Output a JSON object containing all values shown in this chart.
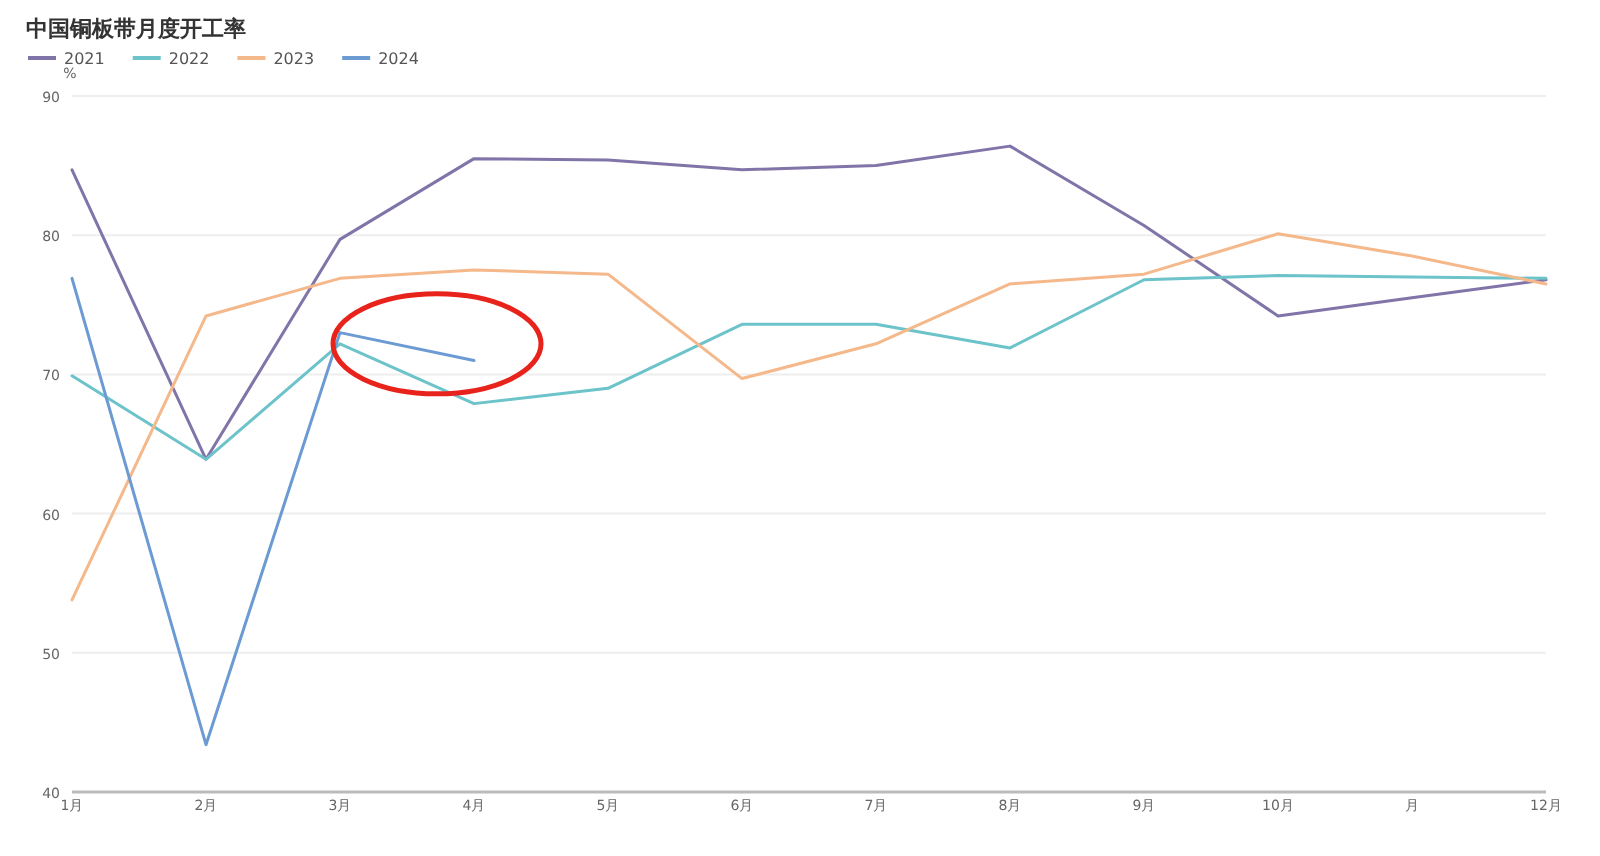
{
  "chart_data": {
    "type": "line",
    "title": "中国铜板带月度开工率",
    "ylabel": "%",
    "categories": [
      "1月",
      "2月",
      "3月",
      "4月",
      "5月",
      "6月",
      "7月",
      "8月",
      "9月",
      "10月",
      "月",
      "12月"
    ],
    "series": [
      {
        "name": "2021",
        "color": "#8074a8",
        "values": [
          84.7,
          63.9,
          79.7,
          85.5,
          85.4,
          84.7,
          85.0,
          86.4,
          80.7,
          74.2,
          75.5,
          76.8
        ]
      },
      {
        "name": "2022",
        "color": "#6cc3c9",
        "values": [
          69.9,
          63.9,
          72.2,
          67.9,
          69.0,
          73.6,
          73.6,
          71.9,
          76.8,
          77.1,
          77.0,
          76.9
        ]
      },
      {
        "name": "2023",
        "color": "#f4b88a",
        "values": [
          53.8,
          74.2,
          76.9,
          77.5,
          77.2,
          69.7,
          72.2,
          76.5,
          77.2,
          80.1,
          78.5,
          76.5
        ]
      },
      {
        "name": "2024",
        "color": "#6b9bd2",
        "values": [
          76.9,
          43.4,
          73.0,
          71.0,
          null,
          null,
          null,
          null,
          null,
          null,
          null,
          null
        ]
      }
    ],
    "ylim": [
      40,
      90
    ],
    "yticks": [
      40,
      50,
      60,
      70,
      80,
      90
    ],
    "grid": "y",
    "legend": "top left"
  }
}
